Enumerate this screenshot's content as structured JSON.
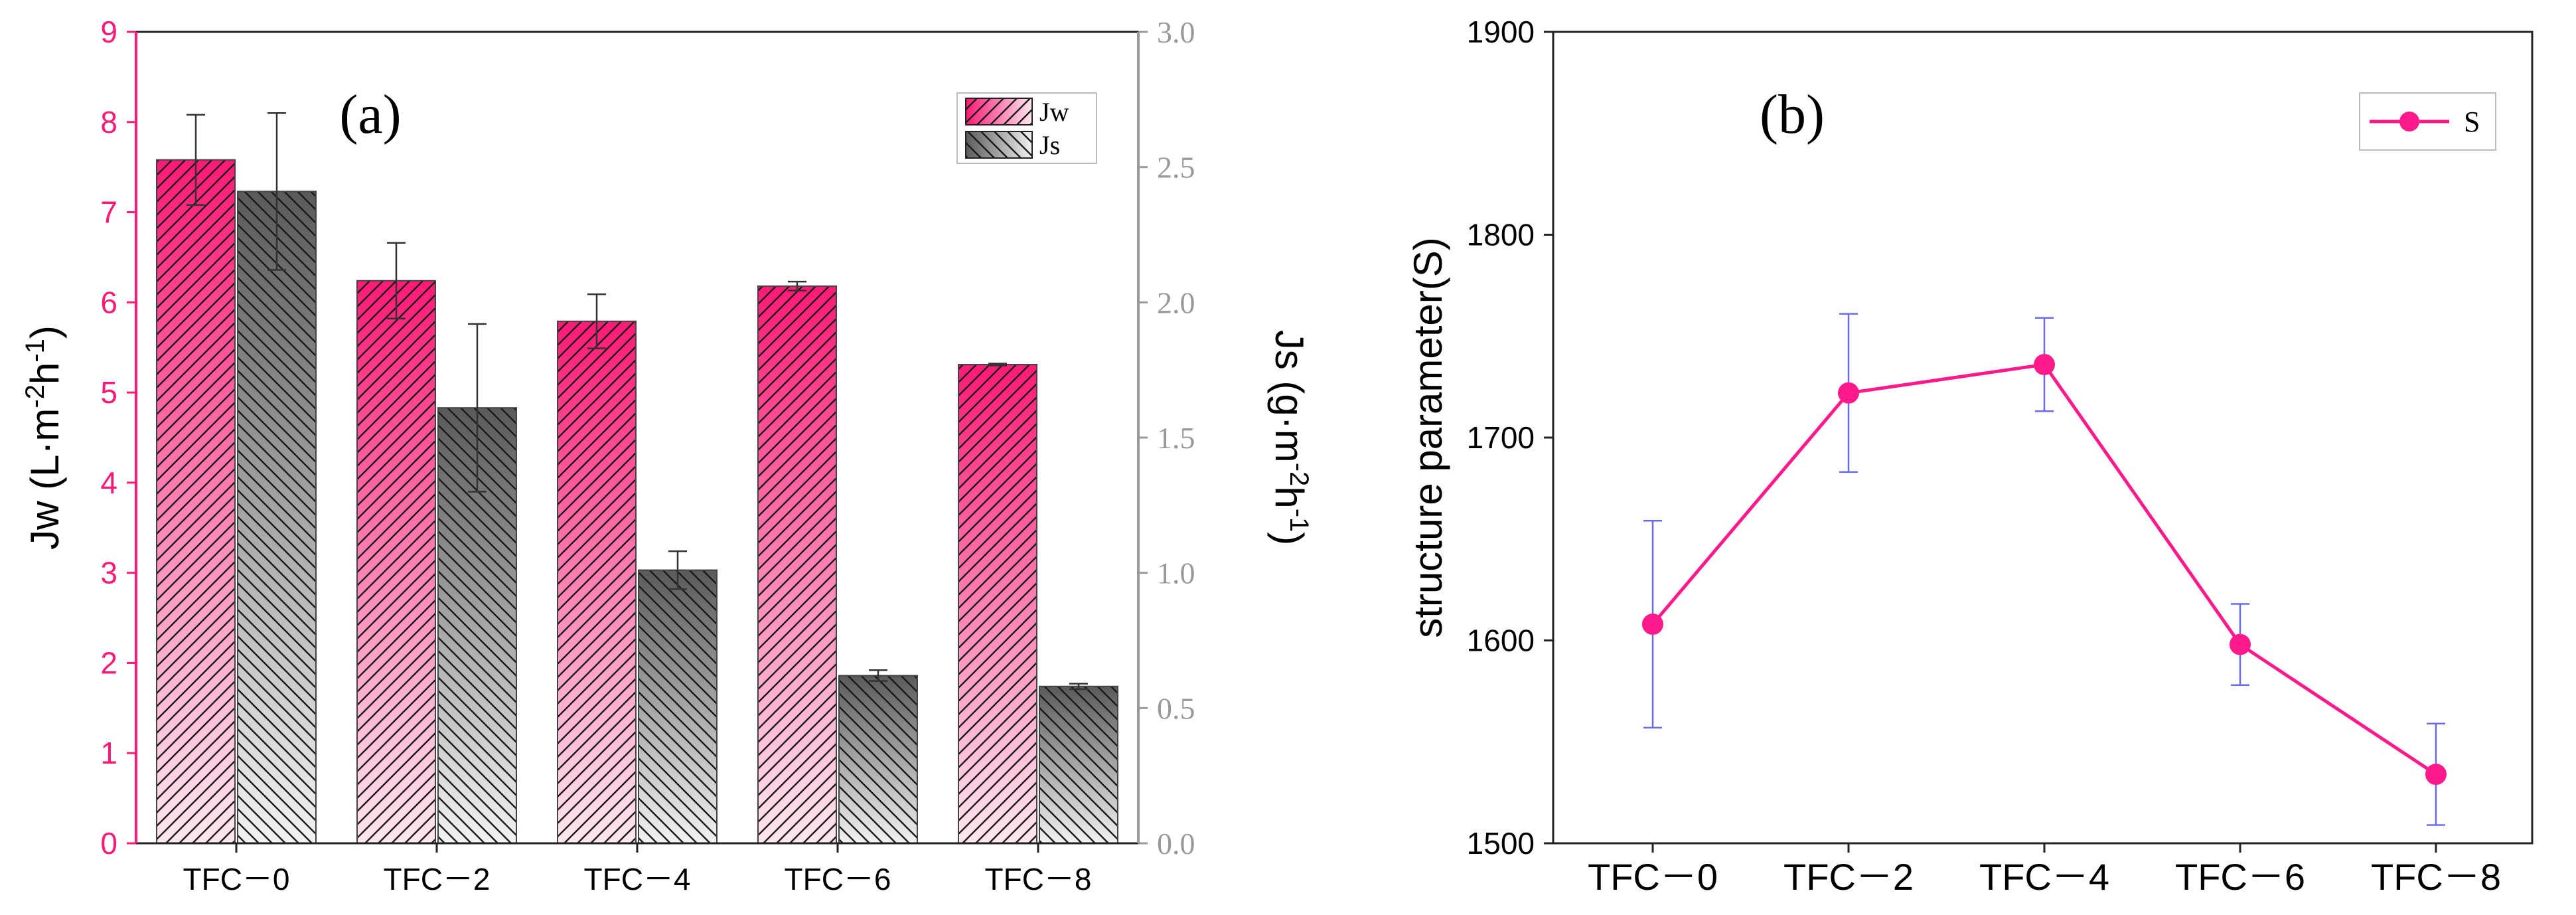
{
  "chart_data": [
    {
      "panel": "(a)",
      "type": "bar",
      "categories": [
        "TFC－0",
        "TFC－2",
        "TFC－4",
        "TFC－6",
        "TFC－8"
      ],
      "ylabel": "Jw (L·m⁻²h⁻¹)",
      "y2label": "Js (g·m⁻²h⁻¹)",
      "ylim": [
        0,
        9
      ],
      "y2lim": [
        0,
        3
      ],
      "yticks": [
        "0",
        "1",
        "2",
        "3",
        "4",
        "5",
        "6",
        "7",
        "8",
        "9"
      ],
      "y2ticks": [
        "0.0",
        "0.5",
        "1.0",
        "1.5",
        "2.0",
        "2.5",
        "3.0"
      ],
      "series": [
        {
          "name": "Jw",
          "axis": "left",
          "values": [
            7.58,
            6.24,
            5.79,
            6.18,
            5.31
          ],
          "errors": [
            0.5,
            0.42,
            0.3,
            0.05,
            0.01
          ]
        },
        {
          "name": "Js",
          "axis": "right",
          "values": [
            2.41,
            1.61,
            1.01,
            0.62,
            0.58
          ],
          "errors": [
            0.29,
            0.31,
            0.07,
            0.02,
            0.01
          ]
        }
      ],
      "legend_position": "top-right",
      "colors": {
        "jw": "#ff1a75",
        "jw_light": "#ffe6ef",
        "js": "#5a5a5a",
        "js_light": "#f2f2f2",
        "left_axis": "#ff1a75",
        "right_axis": "#999999"
      }
    },
    {
      "panel": "(b)",
      "type": "line",
      "categories": [
        "TFC－0",
        "TFC－2",
        "TFC－4",
        "TFC－6",
        "TFC－8"
      ],
      "ylabel": "structure parameter(S)",
      "ylim": [
        1500,
        1900
      ],
      "yticks": [
        "1500",
        "1600",
        "1700",
        "1800",
        "1900"
      ],
      "series": [
        {
          "name": "S",
          "values": [
            1608,
            1722,
            1736,
            1598,
            1534
          ],
          "errors": [
            51,
            39,
            23,
            20,
            25
          ]
        }
      ],
      "legend_position": "top-right",
      "colors": {
        "line": "#ff1a8c",
        "error": "#6a6af0"
      }
    }
  ]
}
